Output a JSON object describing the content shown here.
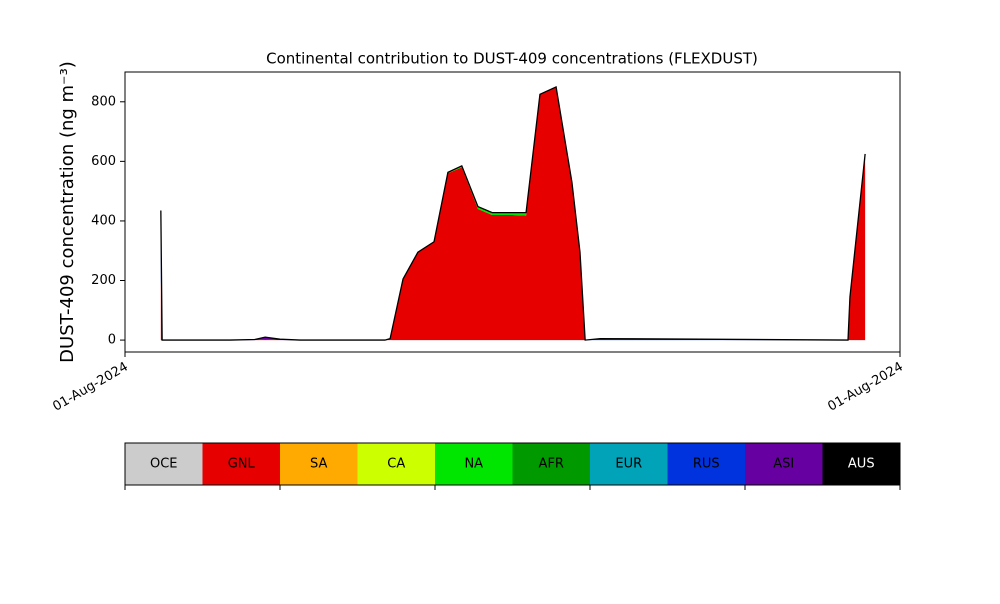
{
  "chart_data": {
    "type": "stacked-area",
    "title": "Continental contribution to DUST-409 concentrations (FLEXDUST)",
    "y_label": "DUST-409 concentration (ng m⁻³)",
    "x": [
      1.11,
      1.15,
      1.21,
      2.32,
      3.25,
      4.02,
      4.34,
      4.8,
      5.42,
      8.05,
      8.21,
      8.61,
      9.07,
      9.57,
      10.0,
      10.43,
      10.93,
      11.37,
      11.99,
      12.42,
      12.85,
      13.35,
      13.84,
      14.09,
      14.25,
      14.71,
      17.81,
      22.39,
      22.45,
      22.92
    ],
    "xlim": [
      0,
      24
    ],
    "xticks": [
      {
        "value": 0,
        "label": "01-Aug-2024"
      },
      {
        "value": 24,
        "label": "01-Aug-2024"
      }
    ],
    "ylim": [
      -40,
      900
    ],
    "yticks": [
      0,
      200,
      400,
      600,
      800
    ],
    "series": [
      {
        "name": "OCE",
        "color": "#cccccc",
        "values": [
          0,
          0,
          0,
          0,
          0,
          0,
          0,
          0,
          0,
          0,
          0,
          0,
          0,
          0,
          0,
          0,
          0,
          0,
          0,
          0,
          0,
          0,
          0,
          0,
          0,
          0,
          0,
          0,
          0,
          0
        ]
      },
      {
        "name": "GNL",
        "color": "#e60000",
        "values": [
          200,
          0,
          0,
          0,
          0,
          0,
          2,
          0,
          0,
          0,
          5,
          205,
          295,
          330,
          560,
          580,
          440,
          420,
          420,
          418,
          825,
          850,
          530,
          295,
          0,
          0,
          0,
          0,
          145,
          625
        ]
      },
      {
        "name": "SA",
        "color": "#ffaa00",
        "values": [
          0,
          0,
          0,
          0,
          0,
          0,
          0,
          0,
          0,
          0,
          0,
          0,
          0,
          0,
          0,
          0,
          0,
          0,
          0,
          0,
          0,
          0,
          0,
          0,
          0,
          0,
          0,
          0,
          0,
          0
        ]
      },
      {
        "name": "CA",
        "color": "#ccff00",
        "values": [
          0,
          0,
          0,
          0,
          0,
          0,
          0,
          0,
          0,
          0,
          0,
          0,
          0,
          0,
          0,
          0,
          0,
          0,
          0,
          0,
          0,
          0,
          0,
          0,
          0,
          0,
          0,
          0,
          0,
          0
        ]
      },
      {
        "name": "NA",
        "color": "#00e600",
        "values": [
          0,
          0,
          0,
          0,
          0,
          0,
          0,
          0,
          0,
          0,
          0,
          0,
          0,
          0,
          3,
          5,
          8,
          8,
          8,
          10,
          0,
          0,
          0,
          0,
          0,
          0,
          0,
          0,
          0,
          0
        ]
      },
      {
        "name": "AFR",
        "color": "#009900",
        "values": [
          0,
          0,
          0,
          0,
          0,
          0,
          0,
          0,
          0,
          0,
          0,
          0,
          0,
          0,
          0,
          0,
          0,
          0,
          0,
          0,
          0,
          0,
          0,
          0,
          0,
          0,
          0,
          0,
          0,
          0
        ]
      },
      {
        "name": "EUR",
        "color": "#00a3b8",
        "values": [
          0,
          0,
          0,
          0,
          0,
          0,
          0,
          0,
          0,
          0,
          0,
          0,
          0,
          0,
          0,
          0,
          0,
          0,
          0,
          0,
          0,
          0,
          0,
          0,
          0,
          0,
          0,
          0,
          0,
          0
        ]
      },
      {
        "name": "RUS",
        "color": "#0033dd",
        "values": [
          235,
          0,
          0,
          0,
          0,
          0,
          0,
          0,
          0,
          0,
          0,
          0,
          0,
          0,
          0,
          0,
          0,
          0,
          0,
          0,
          0,
          0,
          0,
          0,
          0,
          5,
          3,
          0,
          0,
          0
        ]
      },
      {
        "name": "ASI",
        "color": "#6600a0",
        "values": [
          0,
          0,
          0,
          0,
          0,
          2,
          8,
          3,
          0,
          0,
          0,
          0,
          0,
          0,
          0,
          0,
          0,
          0,
          0,
          0,
          0,
          0,
          0,
          0,
          0,
          0,
          0,
          0,
          0,
          0
        ]
      },
      {
        "name": "AUS",
        "color": "#000000",
        "values": [
          0,
          0,
          0,
          0,
          0,
          0,
          0,
          0,
          0,
          0,
          0,
          0,
          0,
          0,
          0,
          0,
          0,
          0,
          0,
          0,
          0,
          0,
          0,
          0,
          0,
          0,
          0,
          0,
          0,
          0
        ]
      }
    ]
  }
}
